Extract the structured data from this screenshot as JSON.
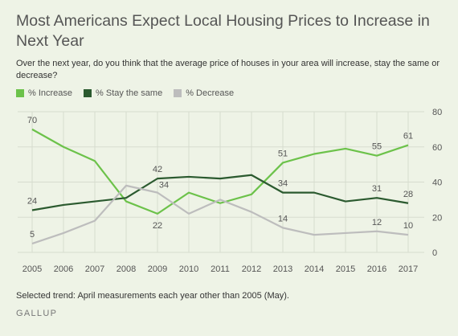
{
  "header": {
    "title": "Most Americans Expect Local Housing Prices to Increase in Next Year",
    "subtitle": "Over the next year, do you think that the average price of houses in your area will increase, stay the same or decrease?"
  },
  "footer": {
    "note": "Selected trend: April measurements each year other than 2005 (May).",
    "brand": "GALLUP"
  },
  "chart_data": {
    "type": "line",
    "title": "Most Americans Expect Local Housing Prices to Increase in Next Year",
    "x": [
      2005,
      2006,
      2007,
      2008,
      2009,
      2010,
      2011,
      2012,
      2013,
      2014,
      2015,
      2016,
      2017
    ],
    "ylim": [
      0,
      80
    ],
    "yticks": [
      0,
      20,
      40,
      60,
      80
    ],
    "grid": true,
    "legend_position": "top-left",
    "series": [
      {
        "name": "% Increase",
        "color": "#6cc24a",
        "values": [
          70,
          60,
          52,
          29,
          22,
          34,
          28,
          33,
          51,
          56,
          59,
          55,
          61
        ],
        "labels": [
          {
            "index": 0,
            "text": "70",
            "pos": "above"
          },
          {
            "index": 4,
            "text": "22",
            "pos": "below"
          },
          {
            "index": 8,
            "text": "51",
            "pos": "above"
          },
          {
            "index": 11,
            "text": "55",
            "pos": "above"
          },
          {
            "index": 12,
            "text": "61",
            "pos": "above"
          }
        ]
      },
      {
        "name": "% Stay the same",
        "color": "#2b5a2f",
        "values": [
          24,
          27,
          29,
          31,
          42,
          43,
          42,
          44,
          34,
          34,
          29,
          31,
          28
        ],
        "labels": [
          {
            "index": 0,
            "text": "24",
            "pos": "above"
          },
          {
            "index": 4,
            "text": "42",
            "pos": "above"
          },
          {
            "index": 8,
            "text": "34",
            "pos": "above"
          },
          {
            "index": 11,
            "text": "31",
            "pos": "above"
          },
          {
            "index": 12,
            "text": "28",
            "pos": "above"
          }
        ]
      },
      {
        "name": "% Decrease",
        "color": "#bdbdbd",
        "values": [
          5,
          11,
          18,
          38,
          34,
          22,
          30,
          23,
          14,
          10,
          11,
          12,
          10
        ],
        "labels": [
          {
            "index": 0,
            "text": "5",
            "pos": "above"
          },
          {
            "index": 4,
            "text": "34",
            "pos": "above-right"
          },
          {
            "index": 8,
            "text": "14",
            "pos": "above"
          },
          {
            "index": 11,
            "text": "12",
            "pos": "above"
          },
          {
            "index": 12,
            "text": "10",
            "pos": "above"
          }
        ]
      }
    ]
  }
}
